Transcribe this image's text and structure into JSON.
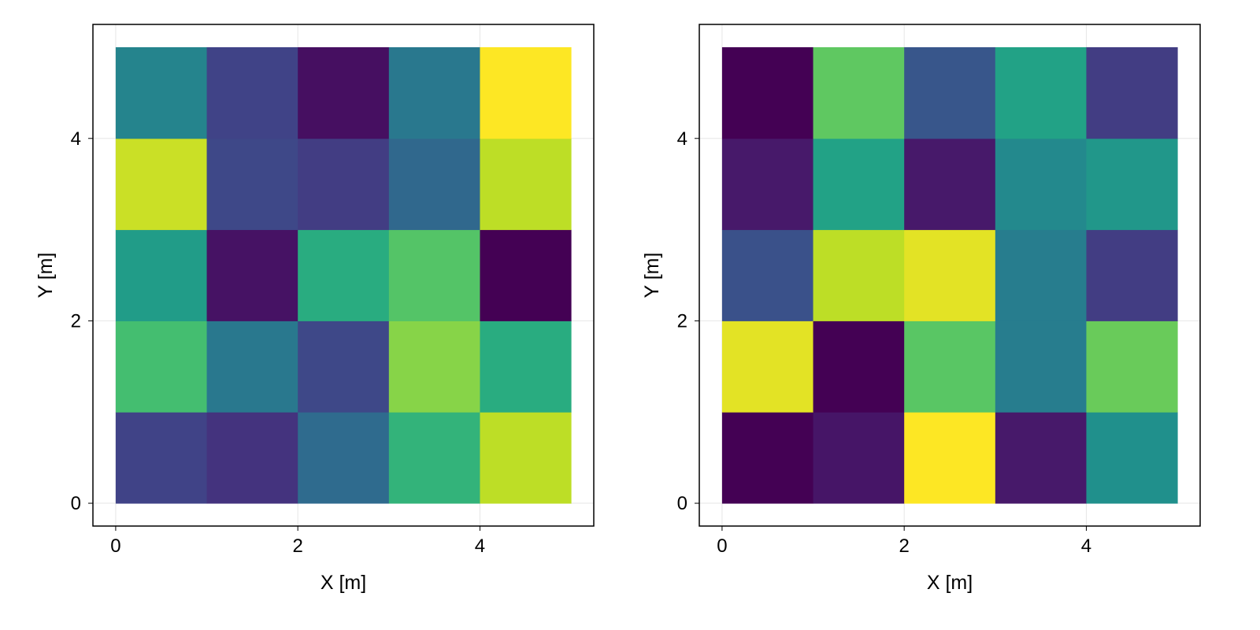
{
  "chart_data": [
    {
      "type": "heatmap",
      "xlabel": "X [m]",
      "ylabel": "Y [m]",
      "xlim": [
        -0.25,
        5.25
      ],
      "ylim": [
        -0.25,
        5.25
      ],
      "xticks": [
        0,
        2,
        4
      ],
      "yticks": [
        0,
        2,
        4
      ],
      "x_tick_labels": [
        "0",
        "2",
        "4"
      ],
      "y_tick_labels": [
        "0",
        "2",
        "4"
      ],
      "grid": true,
      "colormap": "viridis",
      "x_edges": [
        0,
        1,
        2,
        3,
        4,
        5
      ],
      "y_edges": [
        0,
        1,
        2,
        3,
        4,
        5
      ],
      "values": [
        [
          0.2,
          0.15,
          0.35,
          0.65,
          0.9
        ],
        [
          0.7,
          0.4,
          0.22,
          0.82,
          0.62
        ],
        [
          0.55,
          0.05,
          0.62,
          0.73,
          0.0
        ],
        [
          0.92,
          0.22,
          0.18,
          0.34,
          0.9
        ],
        [
          0.45,
          0.2,
          0.04,
          0.4,
          1.0
        ]
      ]
    },
    {
      "type": "heatmap",
      "xlabel": "X [m]",
      "ylabel": "Y [m]",
      "xlim": [
        -0.25,
        5.25
      ],
      "ylim": [
        -0.25,
        5.25
      ],
      "xticks": [
        0,
        2,
        4
      ],
      "yticks": [
        0,
        2,
        4
      ],
      "x_tick_labels": [
        "0",
        "2",
        "4"
      ],
      "y_tick_labels": [
        "0",
        "2",
        "4"
      ],
      "grid": true,
      "colormap": "viridis",
      "x_edges": [
        0,
        1,
        2,
        3,
        4,
        5
      ],
      "y_edges": [
        0,
        1,
        2,
        3,
        4,
        5
      ],
      "values": [
        [
          0.0,
          0.06,
          1.0,
          0.07,
          0.5
        ],
        [
          0.96,
          0.0,
          0.74,
          0.42,
          0.77
        ],
        [
          0.25,
          0.9,
          0.96,
          0.42,
          0.18
        ],
        [
          0.07,
          0.58,
          0.07,
          0.47,
          0.53
        ],
        [
          0.0,
          0.75,
          0.27,
          0.58,
          0.18
        ]
      ]
    }
  ]
}
